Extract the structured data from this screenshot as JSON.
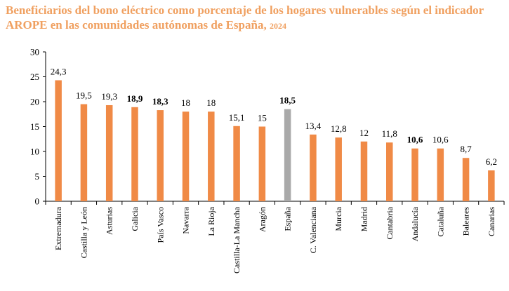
{
  "title": {
    "main": "Beneficiarios del bono eléctrico como porcentaje de los hogares vulnerables según el indicador AROPE en las comunidades autónomas de España,",
    "year": "2024"
  },
  "colors": {
    "bar": "#f08a46",
    "highlight": "#a9a9a9",
    "title": "#f0a060",
    "axis": "#000000"
  },
  "chart_data": {
    "type": "bar",
    "title": "Beneficiarios del bono eléctrico como porcentaje de los hogares vulnerables según el indicador AROPE en las comunidades autónomas de España, 2024",
    "xlabel": "",
    "ylabel": "",
    "ylim": [
      0,
      30
    ],
    "yticks": [
      "0",
      "5",
      "10",
      "15",
      "20",
      "25",
      "30"
    ],
    "grid": false,
    "categories": [
      "Extremadura",
      "Castilla y León",
      "Asturias",
      "Galicia",
      "País Vasco",
      "Navarra",
      "La Rioja",
      "Castilla-La Mancha",
      "Aragón",
      "España",
      "C. Valenciana",
      "Murcia",
      "Madrid",
      "Cantabria",
      "Andalucía",
      "Cataluña",
      "Baleares",
      "Canarias"
    ],
    "values": [
      24.3,
      19.5,
      19.3,
      18.9,
      18.3,
      18,
      18,
      15.1,
      15,
      18.5,
      13.4,
      12.8,
      12,
      11.8,
      10.6,
      10.6,
      8.7,
      6.2
    ],
    "value_labels": [
      "24,3",
      "19,5",
      "19,3",
      "18,9",
      "18,3",
      "18",
      "18",
      "15,1",
      "15",
      "18,5",
      "13,4",
      "12,8",
      "12",
      "11,8",
      "10,6",
      "10,6",
      "8,7",
      "6,2"
    ],
    "bold_labels": [
      "Galicia",
      "País Vasco",
      "España",
      "Andalucía"
    ],
    "highlight_category": "España"
  }
}
